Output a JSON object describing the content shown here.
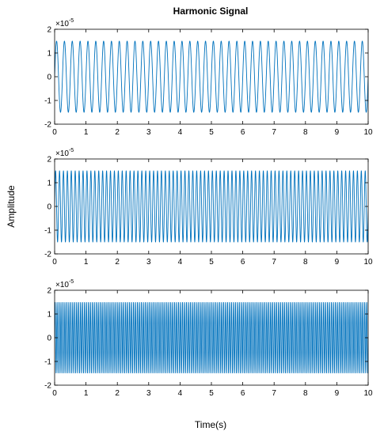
{
  "figure": {
    "title": "Harmonic Signal",
    "xlabel": "Time(s)",
    "ylabel": "Amplitude"
  },
  "colors": {
    "line": "#0072BD",
    "axes": "#000000",
    "background": "#ffffff"
  },
  "chart_data": [
    {
      "type": "line",
      "function": "sine",
      "amplitude": 1.5e-05,
      "frequency_hz": 4,
      "x_range": [
        0,
        10
      ],
      "xlim": [
        0,
        10
      ],
      "ylim": [
        -2e-05,
        2e-05
      ],
      "x_ticks": [
        "0",
        "1",
        "2",
        "3",
        "4",
        "5",
        "6",
        "7",
        "8",
        "9",
        "10"
      ],
      "y_ticks": [
        "-2",
        "-1",
        "0",
        "1",
        "2"
      ],
      "y_exponent": "×10",
      "y_exponent_power": "-5"
    },
    {
      "type": "line",
      "function": "sine",
      "amplitude": 1.5e-05,
      "frequency_hz": 8,
      "x_range": [
        0,
        10
      ],
      "xlim": [
        0,
        10
      ],
      "ylim": [
        -2e-05,
        2e-05
      ],
      "x_ticks": [
        "0",
        "1",
        "2",
        "3",
        "4",
        "5",
        "6",
        "7",
        "8",
        "9",
        "10"
      ],
      "y_ticks": [
        "-2",
        "-1",
        "0",
        "1",
        "2"
      ],
      "y_exponent": "×10",
      "y_exponent_power": "-5"
    },
    {
      "type": "line",
      "function": "sine",
      "amplitude": 1.5e-05,
      "frequency_hz": 16,
      "x_range": [
        0,
        10
      ],
      "xlim": [
        0,
        10
      ],
      "ylim": [
        -2e-05,
        2e-05
      ],
      "x_ticks": [
        "0",
        "1",
        "2",
        "3",
        "4",
        "5",
        "6",
        "7",
        "8",
        "9",
        "10"
      ],
      "y_ticks": [
        "-2",
        "-1",
        "0",
        "1",
        "2"
      ],
      "y_exponent": "×10",
      "y_exponent_power": "-5"
    }
  ]
}
